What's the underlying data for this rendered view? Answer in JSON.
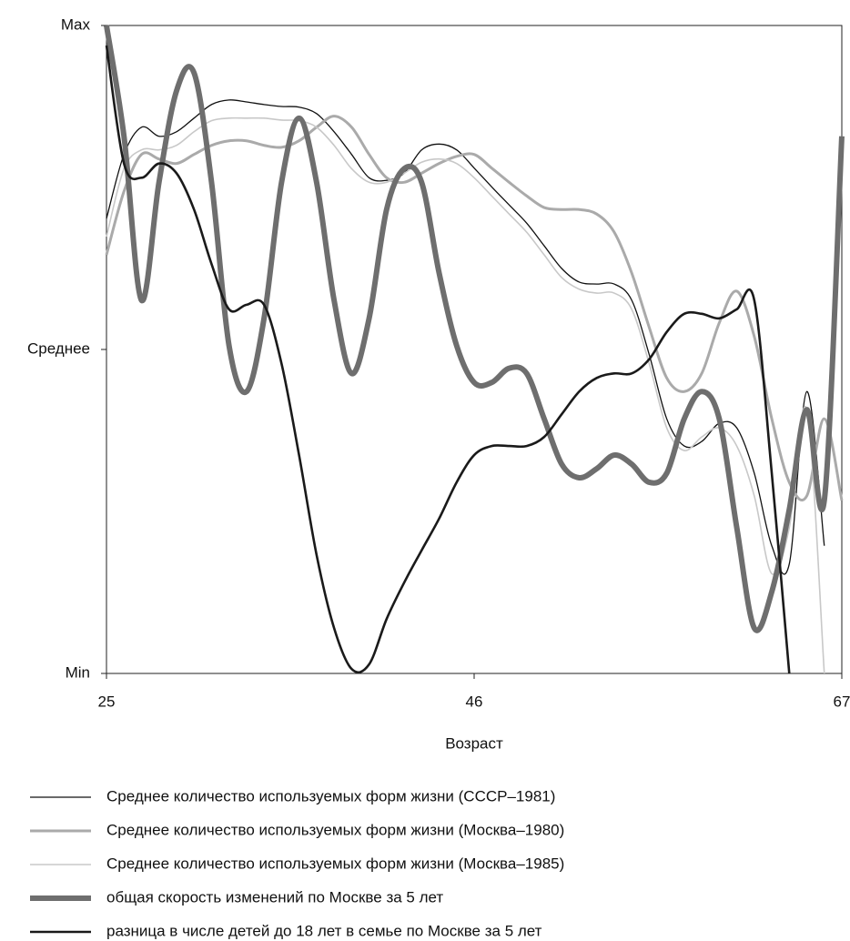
{
  "chart_data": {
    "type": "line",
    "x_label": "Возраст",
    "x": [
      25,
      26,
      27,
      28,
      29,
      30,
      31,
      32,
      33,
      34,
      35,
      36,
      37,
      38,
      39,
      40,
      41,
      42,
      43,
      44,
      45,
      46,
      47,
      48,
      49,
      50,
      51,
      52,
      53,
      54,
      55,
      56,
      57,
      58,
      59,
      60,
      61,
      62,
      63,
      64,
      65,
      66,
      67
    ],
    "xlim": [
      25,
      67
    ],
    "xticks": [
      25,
      46,
      67
    ],
    "ylim": [
      0,
      100
    ],
    "yticks": [
      {
        "value": 0,
        "label": "Min"
      },
      {
        "value": 50,
        "label": "Среднее"
      },
      {
        "value": 100,
        "label": "Max"
      }
    ],
    "grid": false,
    "legend": "bottom",
    "series": [
      {
        "name": "Среднее количество используемых форм жизни (СССР–1981)",
        "color": "#111111",
        "width": 1.3,
        "values": [
          70.2,
          80.1,
          84.3,
          82.9,
          83.6,
          85.7,
          87.8,
          88.5,
          88.2,
          87.8,
          87.5,
          87.4,
          86.4,
          83.6,
          80.1,
          76.5,
          76.1,
          77.2,
          80.8,
          81.7,
          80.8,
          78.0,
          75.1,
          72.3,
          69.5,
          66.0,
          62.5,
          60.4,
          60.1,
          60.1,
          57.6,
          49.2,
          39.3,
          35.1,
          35.8,
          38.6,
          37.9,
          30.9,
          19.7,
          16.9,
          43.5,
          19.7,
          null
        ]
      },
      {
        "name": "Среднее количество используемых форм жизни (Москва–1980)",
        "color": "#aaaaaa",
        "width": 3,
        "values": [
          64.6,
          74.4,
          80.1,
          79.4,
          78.7,
          80.1,
          81.5,
          82.2,
          82.2,
          81.5,
          81.2,
          82.2,
          84.3,
          86.0,
          84.3,
          80.1,
          76.5,
          75.8,
          77.2,
          78.7,
          79.8,
          80.1,
          78.0,
          75.8,
          73.7,
          71.9,
          71.6,
          71.6,
          70.9,
          68.1,
          61.8,
          53.4,
          45.6,
          43.5,
          46.3,
          54.1,
          59.0,
          52.0,
          39.3,
          29.5,
          27.4,
          39.3,
          26.7
        ]
      },
      {
        "name": "Среднее количество используемых форм жизни (Москва–1985)",
        "color": "#c8c8c8",
        "width": 1.6,
        "values": [
          67.4,
          77.9,
          80.8,
          80.8,
          81.5,
          83.6,
          85.3,
          85.7,
          85.7,
          85.7,
          85.4,
          85.3,
          84.3,
          81.5,
          77.9,
          75.8,
          75.8,
          77.2,
          78.9,
          79.4,
          78.7,
          76.5,
          73.7,
          70.9,
          68.1,
          64.6,
          61.1,
          59.3,
          58.7,
          58.7,
          56.2,
          47.8,
          37.9,
          34.4,
          36.5,
          37.9,
          35.1,
          27.4,
          15.4,
          22.5,
          40.7,
          0,
          null
        ]
      },
      {
        "name": "общая скорость изменений по Москве за  5 лет",
        "color": "#6e6e6e",
        "width": 6,
        "values": [
          100,
          82.9,
          57.6,
          75.8,
          89.9,
          92.7,
          75.8,
          50.6,
          43.5,
          54.8,
          75.8,
          85.7,
          75.8,
          57.6,
          46.3,
          54.8,
          71.6,
          77.9,
          75.8,
          61.8,
          50.6,
          44.9,
          44.9,
          47.1,
          46.3,
          39.3,
          32.3,
          30.2,
          31.6,
          33.7,
          32.3,
          29.5,
          30.9,
          39.3,
          43.5,
          39.3,
          22.5,
          7.0,
          12.6,
          25.3,
          40.7,
          26.7,
          82.9
        ]
      },
      {
        "name": "разница в числе детей до 18 лет в семье по Москве за 5 лет",
        "color": "#1a1a1a",
        "width": 2.6,
        "values": [
          96.9,
          78.7,
          76.5,
          78.7,
          77.2,
          71.6,
          63.2,
          56.2,
          56.9,
          56.9,
          47.8,
          33.7,
          18.3,
          7.0,
          0.7,
          1.4,
          8.4,
          14.0,
          19.0,
          23.9,
          29.5,
          33.7,
          35.1,
          35.1,
          35.1,
          36.5,
          40.0,
          43.5,
          45.6,
          46.3,
          46.3,
          48.5,
          52.7,
          55.5,
          55.5,
          54.8,
          56.2,
          57.6,
          30.9,
          0,
          null,
          null,
          null
        ]
      }
    ]
  }
}
